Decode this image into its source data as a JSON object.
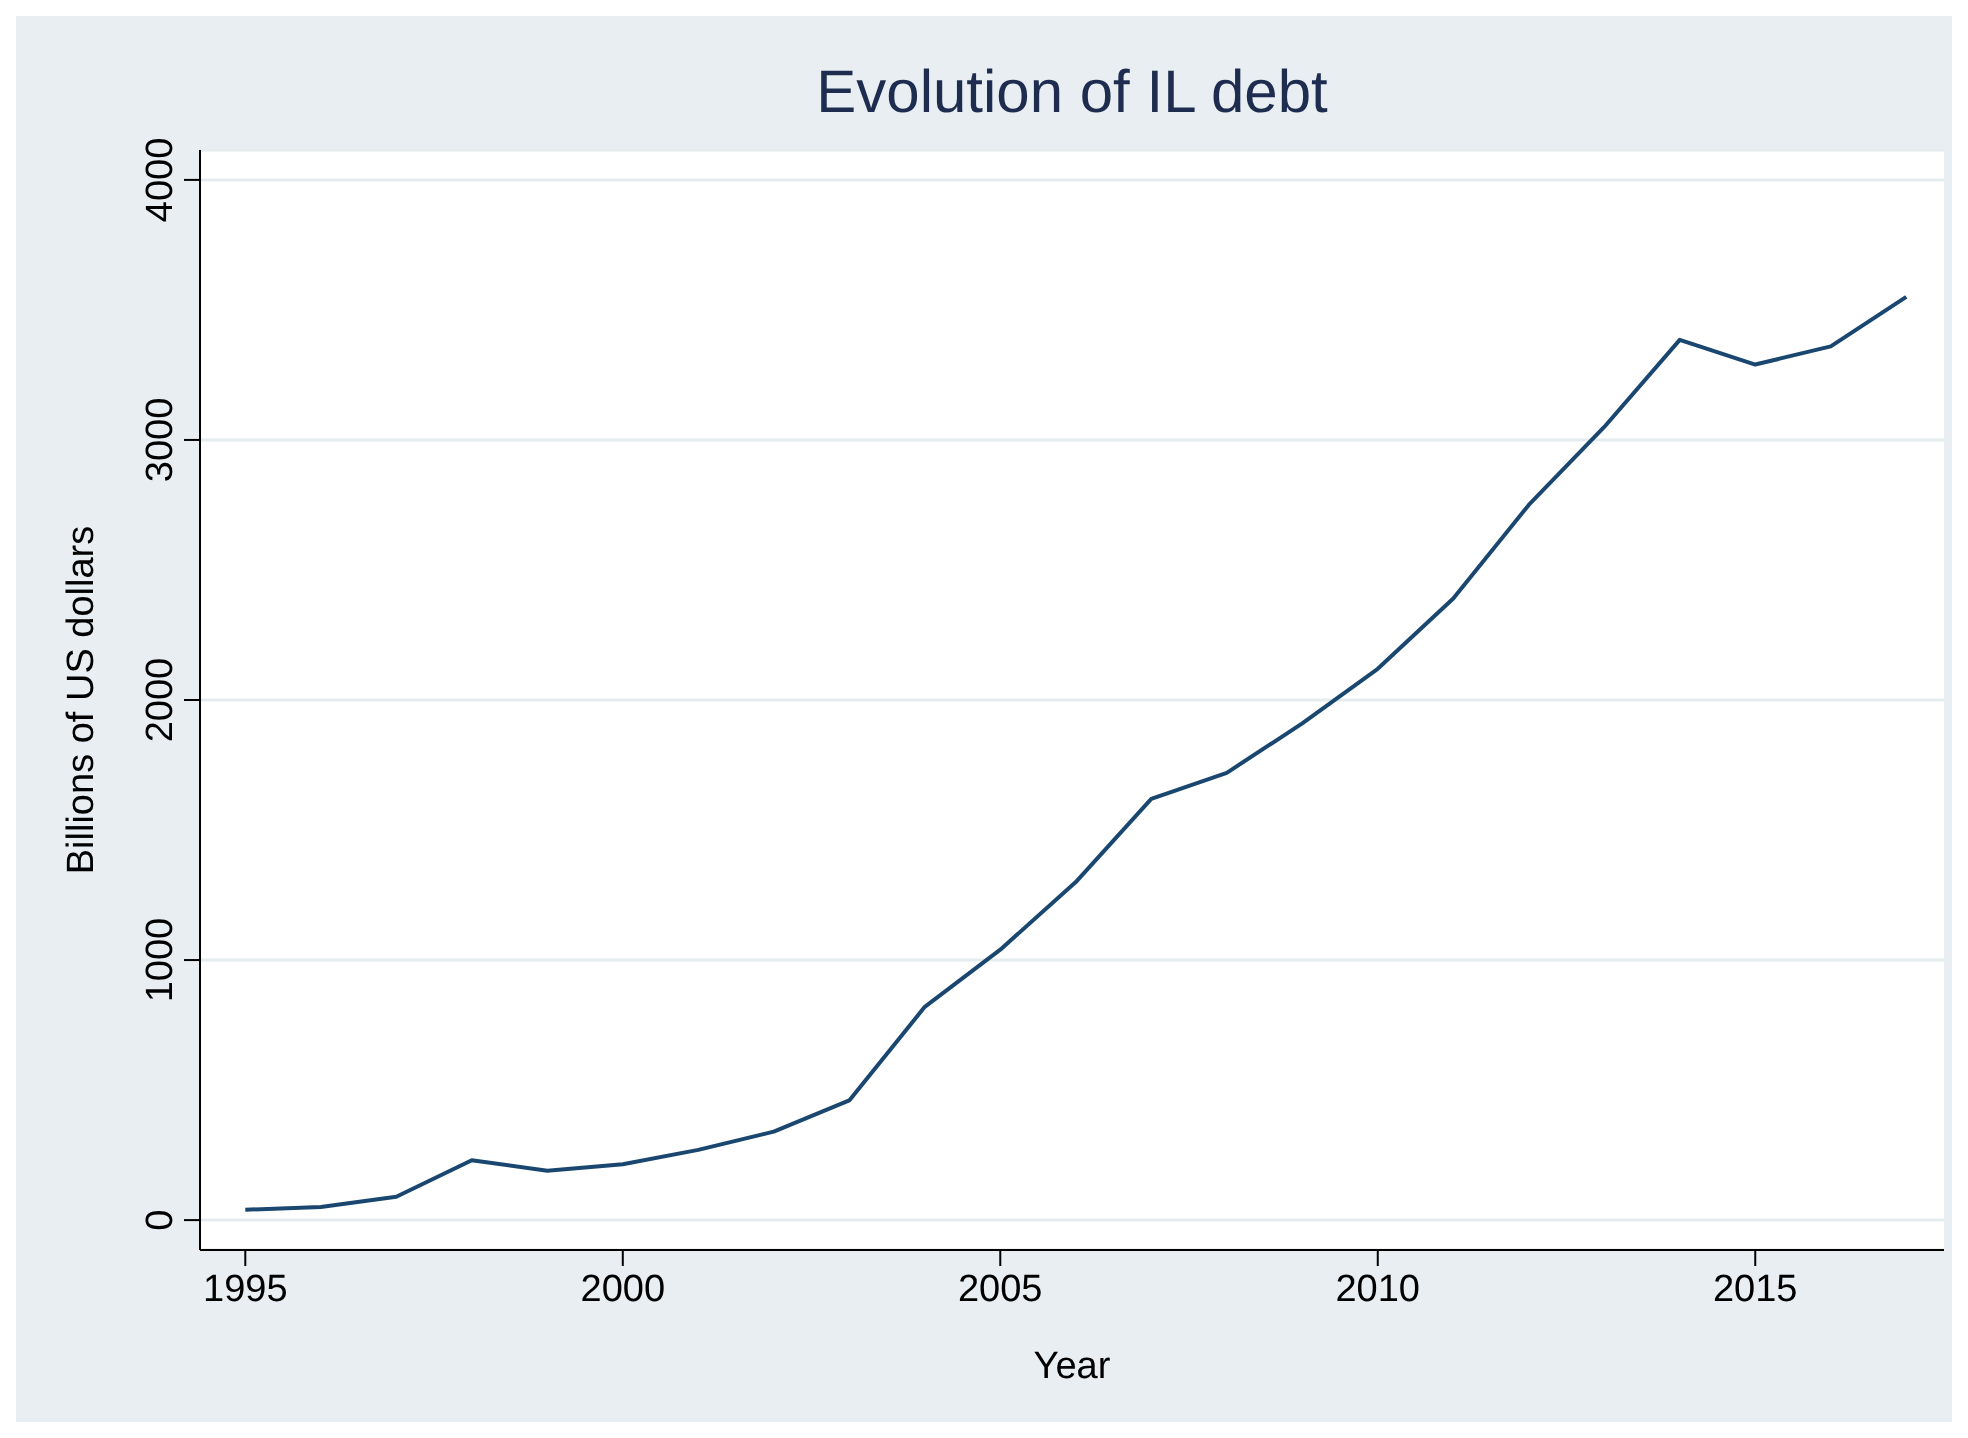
{
  "chart_data": {
    "type": "line",
    "title": "Evolution of IL debt",
    "xlabel": "Year",
    "ylabel": "Billions of US dollars",
    "x": [
      1995,
      1996,
      1997,
      1998,
      1999,
      2000,
      2001,
      2002,
      2003,
      2004,
      2005,
      2006,
      2007,
      2008,
      2009,
      2010,
      2011,
      2012,
      2013,
      2014,
      2015,
      2016,
      2017
    ],
    "series": [
      {
        "color": "#1a476f",
        "values": [
          40,
          50,
          90,
          230,
          190,
          215,
          270,
          340,
          460,
          820,
          1040,
          1300,
          1620,
          1720,
          1910,
          2120,
          2390,
          2750,
          3050,
          3385,
          3290,
          3360,
          3550
        ]
      }
    ],
    "xlim": [
      1994.4,
      2017.5
    ],
    "xticks": [
      1995,
      2000,
      2005,
      2010,
      2015
    ],
    "ylim": [
      -115,
      4115
    ],
    "yticks": [
      0,
      1000,
      2000,
      3000,
      4000
    ],
    "grid": "y",
    "legend": false,
    "marker": "none",
    "line_style": "solid"
  }
}
